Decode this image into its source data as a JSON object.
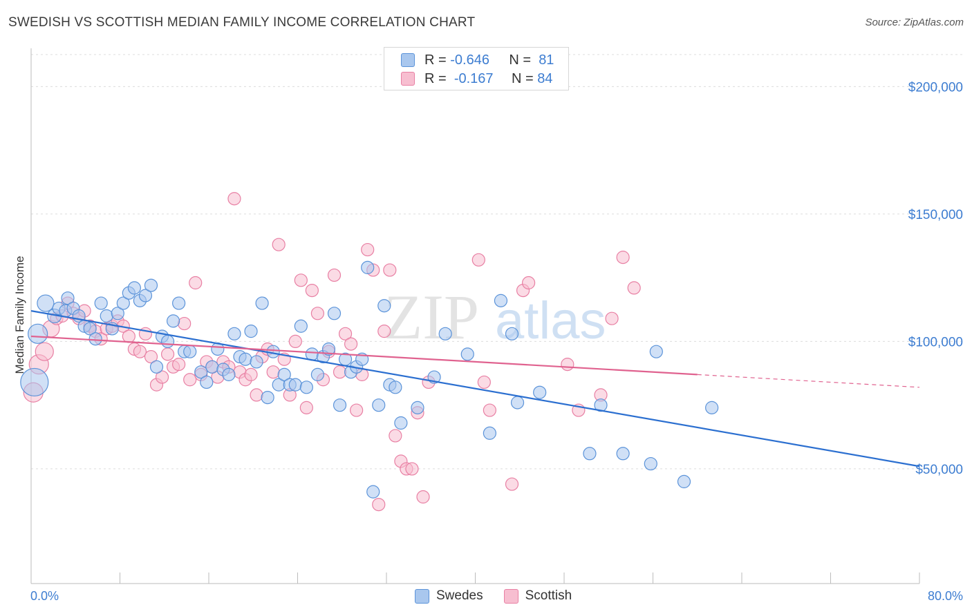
{
  "header": {
    "title": "SWEDISH VS SCOTTISH MEDIAN FAMILY INCOME CORRELATION CHART",
    "source": "Source: ZipAtlas.com"
  },
  "legend": {
    "swedes": {
      "r_label": "R =",
      "r_value": "-0.646",
      "n_label": "N =",
      "n_value": "81"
    },
    "scottish": {
      "r_label": "R =",
      "r_value": "-0.167",
      "n_label": "N =",
      "n_value": "84"
    }
  },
  "bottom_legend": {
    "swedes": "Swedes",
    "scottish": "Scottish"
  },
  "watermark": {
    "zip": "ZIP",
    "atlas": "atlas"
  },
  "colors": {
    "swedes_fill": "#a9c7ee",
    "swedes_stroke": "#5b93d9",
    "swedes_line": "#2b6fd0",
    "scottish_fill": "#f7bed0",
    "scottish_stroke": "#e87fa3",
    "scottish_line": "#e0628f",
    "axis_label": "#3d7dd1"
  },
  "chart_data": {
    "type": "scatter",
    "title": "SWEDISH VS SCOTTISH MEDIAN FAMILY INCOME CORRELATION CHART",
    "xlabel": "",
    "ylabel": "Median Family Income",
    "xlim": [
      0,
      80
    ],
    "ylim": [
      5000,
      215000
    ],
    "x_tick_labels": [
      "0.0%",
      "80.0%"
    ],
    "y_ticks": [
      50000,
      100000,
      150000,
      200000
    ],
    "y_tick_labels": [
      "$50,000",
      "$100,000",
      "$150,000",
      "$200,000"
    ],
    "grid": true,
    "legend_position": "top-center",
    "series": [
      {
        "name": "Swedes",
        "r": -0.646,
        "n": 81,
        "trend": {
          "x0": 0,
          "y0": 112000,
          "x1": 80,
          "y1": 51000
        },
        "points": [
          [
            0.3,
            84000,
            20
          ],
          [
            0.6,
            103000,
            14
          ],
          [
            1.3,
            115000,
            12
          ],
          [
            2.1,
            110000,
            10
          ],
          [
            2.5,
            113000,
            9
          ],
          [
            3.3,
            117000,
            9
          ],
          [
            3.1,
            112000,
            9
          ],
          [
            3.8,
            113000,
            9
          ],
          [
            4.3,
            110000,
            9
          ],
          [
            4.8,
            106000,
            9
          ],
          [
            5.3,
            105000,
            9
          ],
          [
            5.8,
            101000,
            9
          ],
          [
            6.3,
            115000,
            9
          ],
          [
            6.8,
            110000,
            9
          ],
          [
            7.3,
            105000,
            9
          ],
          [
            7.8,
            111000,
            9
          ],
          [
            8.3,
            115000,
            9
          ],
          [
            8.8,
            119000,
            9
          ],
          [
            9.3,
            121000,
            9
          ],
          [
            9.8,
            116000,
            9
          ],
          [
            10.3,
            118000,
            9
          ],
          [
            10.8,
            122000,
            9
          ],
          [
            11.3,
            90000,
            9
          ],
          [
            11.8,
            102000,
            9
          ],
          [
            12.3,
            100000,
            9
          ],
          [
            12.8,
            108000,
            9
          ],
          [
            13.3,
            115000,
            9
          ],
          [
            13.8,
            96000,
            9
          ],
          [
            14.3,
            96000,
            9
          ],
          [
            15.3,
            88000,
            9
          ],
          [
            15.8,
            84000,
            9
          ],
          [
            16.3,
            90000,
            9
          ],
          [
            16.8,
            97000,
            9
          ],
          [
            17.3,
            89000,
            9
          ],
          [
            17.8,
            87000,
            9
          ],
          [
            18.3,
            103000,
            9
          ],
          [
            18.8,
            94000,
            9
          ],
          [
            19.3,
            93000,
            9
          ],
          [
            19.8,
            104000,
            9
          ],
          [
            20.3,
            92000,
            9
          ],
          [
            20.8,
            115000,
            9
          ],
          [
            21.3,
            78000,
            9
          ],
          [
            21.8,
            96000,
            9
          ],
          [
            22.3,
            83000,
            9
          ],
          [
            22.8,
            87000,
            9
          ],
          [
            23.3,
            83000,
            9
          ],
          [
            23.8,
            83000,
            9
          ],
          [
            24.3,
            106000,
            9
          ],
          [
            24.8,
            82000,
            9
          ],
          [
            25.3,
            95000,
            9
          ],
          [
            25.8,
            87000,
            9
          ],
          [
            26.3,
            94000,
            9
          ],
          [
            26.8,
            97000,
            9
          ],
          [
            27.3,
            111000,
            9
          ],
          [
            27.8,
            75000,
            9
          ],
          [
            28.3,
            93000,
            9
          ],
          [
            28.8,
            88000,
            9
          ],
          [
            29.3,
            90000,
            9
          ],
          [
            29.8,
            93000,
            9
          ],
          [
            30.3,
            129000,
            9
          ],
          [
            30.8,
            41000,
            9
          ],
          [
            31.3,
            75000,
            9
          ],
          [
            31.8,
            114000,
            9
          ],
          [
            32.3,
            83000,
            9
          ],
          [
            32.8,
            82000,
            9
          ],
          [
            33.3,
            68000,
            9
          ],
          [
            34.8,
            74000,
            9
          ],
          [
            36.3,
            86000,
            9
          ],
          [
            37.3,
            103000,
            9
          ],
          [
            39.3,
            95000,
            9
          ],
          [
            41.3,
            64000,
            9
          ],
          [
            42.3,
            116000,
            9
          ],
          [
            43.3,
            103000,
            9
          ],
          [
            43.8,
            76000,
            9
          ],
          [
            45.8,
            80000,
            9
          ],
          [
            50.3,
            56000,
            9
          ],
          [
            51.3,
            75000,
            9
          ],
          [
            53.3,
            56000,
            9
          ],
          [
            55.8,
            52000,
            9
          ],
          [
            56.3,
            96000,
            9
          ],
          [
            58.8,
            45000,
            9
          ],
          [
            61.3,
            74000,
            9
          ]
        ]
      },
      {
        "name": "Scottish",
        "r": -0.167,
        "n": 84,
        "trend": {
          "x0": 0,
          "y0": 102000,
          "x1": 60,
          "y1": 87000
        },
        "trend_dashed": {
          "x0": 60,
          "y0": 87000,
          "x1": 80,
          "y1": 82000
        },
        "points": [
          [
            0.2,
            80000,
            14
          ],
          [
            0.7,
            91000,
            14
          ],
          [
            1.2,
            96000,
            13
          ],
          [
            1.8,
            105000,
            12
          ],
          [
            2.3,
            109000,
            9
          ],
          [
            2.8,
            110000,
            9
          ],
          [
            3.3,
            115000,
            9
          ],
          [
            3.8,
            111000,
            9
          ],
          [
            4.3,
            109000,
            9
          ],
          [
            4.8,
            112000,
            9
          ],
          [
            5.3,
            106000,
            9
          ],
          [
            5.8,
            104000,
            9
          ],
          [
            6.3,
            101000,
            9
          ],
          [
            6.8,
            105000,
            9
          ],
          [
            7.3,
            106000,
            9
          ],
          [
            7.8,
            108000,
            9
          ],
          [
            8.3,
            106000,
            9
          ],
          [
            8.8,
            102000,
            9
          ],
          [
            9.3,
            97000,
            9
          ],
          [
            9.8,
            96000,
            9
          ],
          [
            10.3,
            103000,
            9
          ],
          [
            10.8,
            94000,
            9
          ],
          [
            11.3,
            83000,
            9
          ],
          [
            11.8,
            86000,
            9
          ],
          [
            12.3,
            95000,
            9
          ],
          [
            12.8,
            90000,
            9
          ],
          [
            13.3,
            91000,
            9
          ],
          [
            13.8,
            107000,
            9
          ],
          [
            14.3,
            85000,
            9
          ],
          [
            14.8,
            123000,
            9
          ],
          [
            15.3,
            87000,
            9
          ],
          [
            15.8,
            92000,
            9
          ],
          [
            16.3,
            90000,
            9
          ],
          [
            16.8,
            86000,
            9
          ],
          [
            17.3,
            92000,
            9
          ],
          [
            17.8,
            90000,
            9
          ],
          [
            18.3,
            156000,
            9
          ],
          [
            18.8,
            88000,
            9
          ],
          [
            19.3,
            85000,
            9
          ],
          [
            19.8,
            87000,
            9
          ],
          [
            20.3,
            79000,
            9
          ],
          [
            20.8,
            94000,
            9
          ],
          [
            21.3,
            97000,
            9
          ],
          [
            21.8,
            88000,
            9
          ],
          [
            22.3,
            138000,
            9
          ],
          [
            22.8,
            93000,
            9
          ],
          [
            23.3,
            79000,
            9
          ],
          [
            23.8,
            100000,
            9
          ],
          [
            24.3,
            124000,
            9
          ],
          [
            24.8,
            74000,
            9
          ],
          [
            25.3,
            120000,
            9
          ],
          [
            25.8,
            111000,
            9
          ],
          [
            26.3,
            85000,
            9
          ],
          [
            26.8,
            96000,
            9
          ],
          [
            27.3,
            126000,
            9
          ],
          [
            27.8,
            88000,
            9
          ],
          [
            28.3,
            103000,
            9
          ],
          [
            28.8,
            99000,
            9
          ],
          [
            29.3,
            73000,
            9
          ],
          [
            29.8,
            87000,
            9
          ],
          [
            30.3,
            136000,
            9
          ],
          [
            30.8,
            128000,
            9
          ],
          [
            31.3,
            36000,
            9
          ],
          [
            31.8,
            104000,
            9
          ],
          [
            32.3,
            128000,
            9
          ],
          [
            32.8,
            63000,
            9
          ],
          [
            33.3,
            53000,
            9
          ],
          [
            33.8,
            50000,
            9
          ],
          [
            34.3,
            50000,
            9
          ],
          [
            34.8,
            72000,
            9
          ],
          [
            35.3,
            39000,
            9
          ],
          [
            35.8,
            84000,
            9
          ],
          [
            40.3,
            132000,
            9
          ],
          [
            40.8,
            84000,
            9
          ],
          [
            41.3,
            73000,
            9
          ],
          [
            43.3,
            44000,
            9
          ],
          [
            44.3,
            120000,
            9
          ],
          [
            44.8,
            123000,
            9
          ],
          [
            48.3,
            91000,
            9
          ],
          [
            49.3,
            73000,
            9
          ],
          [
            51.3,
            79000,
            9
          ],
          [
            52.3,
            109000,
            9
          ],
          [
            53.3,
            133000,
            9
          ],
          [
            54.3,
            121000,
            9
          ]
        ]
      }
    ]
  }
}
